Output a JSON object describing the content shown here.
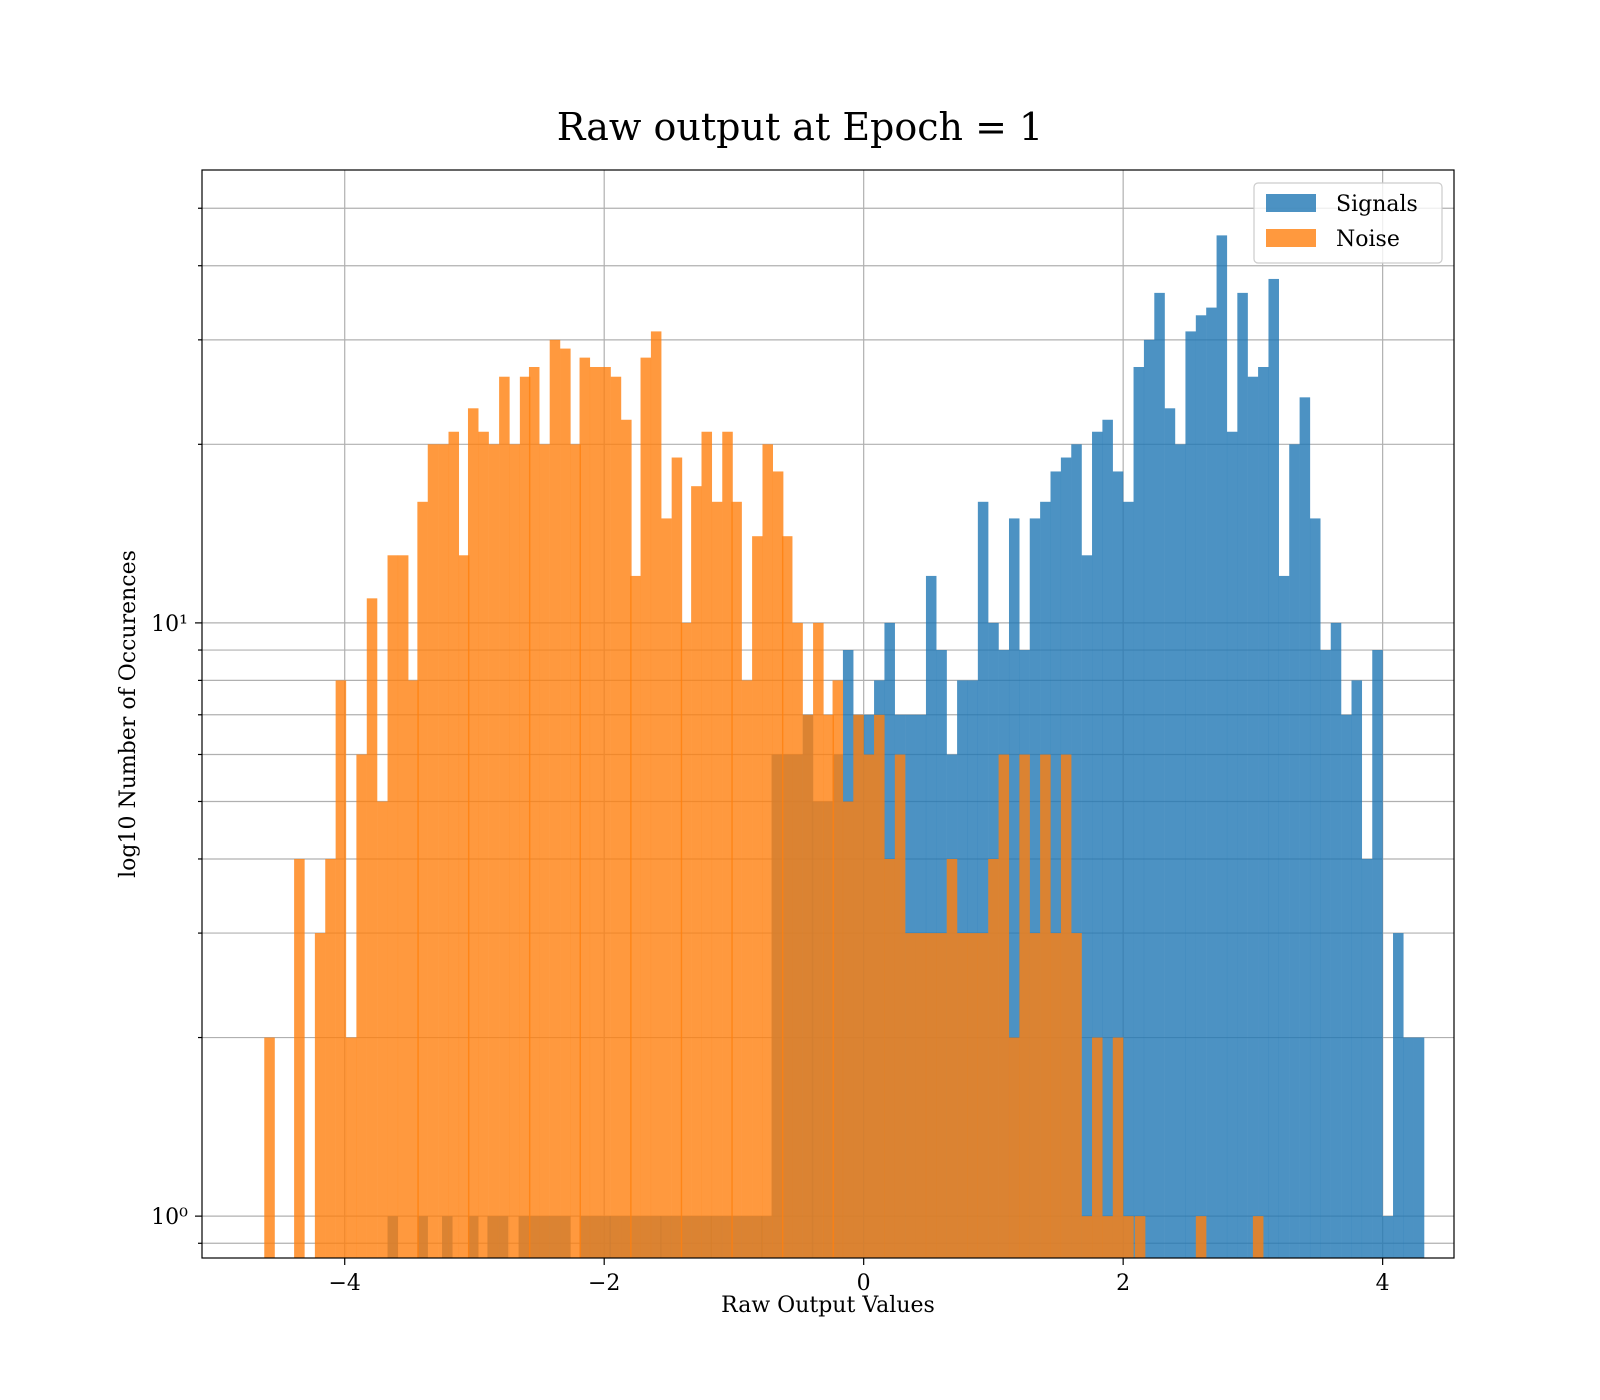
{
  "chart_data": {
    "type": "bar",
    "title": "Raw output at Epoch = 1",
    "xlabel": "Raw Output Values",
    "ylabel": "log10 Number of Occurences",
    "xlim": [
      -5.1,
      4.55
    ],
    "ylim": [
      0.85,
      58
    ],
    "yscale": "log",
    "grid": true,
    "legend_position": "top-right",
    "x_ticks": [
      -4,
      -2,
      0,
      2,
      4
    ],
    "x_tick_labels": [
      "−4",
      "−2",
      "0",
      "2",
      "4"
    ],
    "y_tick_labels": [
      "10⁰",
      "10¹"
    ],
    "bin_width": 0.078,
    "series": [
      {
        "name": "Signals",
        "color": "#1f77b4",
        "bins": [
          [
            -3.67,
            1
          ],
          [
            -3.44,
            1
          ],
          [
            -3.25,
            1
          ],
          [
            -3.05,
            1
          ],
          [
            -2.9,
            1
          ],
          [
            -2.82,
            1
          ],
          [
            -2.66,
            1
          ],
          [
            -2.58,
            1
          ],
          [
            -2.5,
            1
          ],
          [
            -2.42,
            1
          ],
          [
            -2.34,
            1
          ],
          [
            -2.19,
            1
          ],
          [
            -2.11,
            1
          ],
          [
            -2.03,
            1
          ],
          [
            -1.96,
            1
          ],
          [
            -1.88,
            1
          ],
          [
            -1.8,
            1
          ],
          [
            -1.72,
            1
          ],
          [
            -1.64,
            1
          ],
          [
            -1.57,
            1
          ],
          [
            -1.49,
            1
          ],
          [
            -1.41,
            1
          ],
          [
            -1.33,
            1
          ],
          [
            -1.25,
            1
          ],
          [
            -1.18,
            1
          ],
          [
            -1.1,
            1
          ],
          [
            -1.02,
            1
          ],
          [
            -0.94,
            1
          ],
          [
            -0.86,
            1
          ],
          [
            -0.79,
            1
          ],
          [
            -0.71,
            6
          ],
          [
            -0.63,
            6
          ],
          [
            -0.55,
            6
          ],
          [
            -0.47,
            7
          ],
          [
            -0.4,
            5
          ],
          [
            -0.32,
            5
          ],
          [
            -0.24,
            6
          ],
          [
            -0.16,
            9
          ],
          [
            -0.08,
            7
          ],
          [
            0.0,
            7
          ],
          [
            0.08,
            8
          ],
          [
            0.16,
            10
          ],
          [
            0.24,
            7
          ],
          [
            0.32,
            7
          ],
          [
            0.4,
            7
          ],
          [
            0.48,
            12
          ],
          [
            0.56,
            9
          ],
          [
            0.64,
            6
          ],
          [
            0.72,
            8
          ],
          [
            0.8,
            8
          ],
          [
            0.88,
            16
          ],
          [
            0.96,
            10
          ],
          [
            1.04,
            9
          ],
          [
            1.12,
            15
          ],
          [
            1.2,
            9
          ],
          [
            1.28,
            15
          ],
          [
            1.36,
            16
          ],
          [
            1.44,
            18
          ],
          [
            1.52,
            19
          ],
          [
            1.6,
            20
          ],
          [
            1.68,
            13
          ],
          [
            1.76,
            21
          ],
          [
            1.84,
            22
          ],
          [
            1.92,
            18
          ],
          [
            2.0,
            16
          ],
          [
            2.08,
            27
          ],
          [
            2.16,
            30
          ],
          [
            2.24,
            36
          ],
          [
            2.32,
            23
          ],
          [
            2.4,
            20
          ],
          [
            2.48,
            31
          ],
          [
            2.56,
            33
          ],
          [
            2.64,
            34
          ],
          [
            2.72,
            45
          ],
          [
            2.8,
            21
          ],
          [
            2.88,
            36
          ],
          [
            2.96,
            26
          ],
          [
            3.04,
            27
          ],
          [
            3.12,
            38
          ],
          [
            3.2,
            12
          ],
          [
            3.28,
            20
          ],
          [
            3.36,
            24
          ],
          [
            3.44,
            15
          ],
          [
            3.52,
            9
          ],
          [
            3.6,
            10
          ],
          [
            3.68,
            7
          ],
          [
            3.76,
            8
          ],
          [
            3.84,
            4
          ],
          [
            3.92,
            9
          ],
          [
            4.0,
            1
          ],
          [
            4.08,
            3
          ],
          [
            4.16,
            2
          ],
          [
            4.24,
            2
          ]
        ]
      },
      {
        "name": "Noise",
        "color": "#ff7f0e",
        "bins": [
          [
            -4.62,
            2
          ],
          [
            -4.39,
            4
          ],
          [
            -4.23,
            3
          ],
          [
            -4.15,
            4
          ],
          [
            -4.07,
            8
          ],
          [
            -3.99,
            2
          ],
          [
            -3.91,
            6
          ],
          [
            -3.83,
            11
          ],
          [
            -3.75,
            5
          ],
          [
            -3.67,
            13
          ],
          [
            -3.59,
            13
          ],
          [
            -3.51,
            8
          ],
          [
            -3.44,
            16
          ],
          [
            -3.36,
            20
          ],
          [
            -3.28,
            20
          ],
          [
            -3.2,
            21
          ],
          [
            -3.12,
            13
          ],
          [
            -3.05,
            23
          ],
          [
            -2.97,
            21
          ],
          [
            -2.89,
            20
          ],
          [
            -2.81,
            26
          ],
          [
            -2.73,
            20
          ],
          [
            -2.65,
            26
          ],
          [
            -2.58,
            27
          ],
          [
            -2.5,
            20
          ],
          [
            -2.42,
            30
          ],
          [
            -2.34,
            29
          ],
          [
            -2.26,
            20
          ],
          [
            -2.19,
            28
          ],
          [
            -2.11,
            27
          ],
          [
            -2.03,
            27
          ],
          [
            -1.95,
            26
          ],
          [
            -1.87,
            22
          ],
          [
            -1.8,
            12
          ],
          [
            -1.72,
            28
          ],
          [
            -1.64,
            31
          ],
          [
            -1.56,
            15
          ],
          [
            -1.48,
            19
          ],
          [
            -1.41,
            10
          ],
          [
            -1.33,
            17
          ],
          [
            -1.25,
            21
          ],
          [
            -1.17,
            16
          ],
          [
            -1.09,
            21
          ],
          [
            -1.02,
            16
          ],
          [
            -0.94,
            8
          ],
          [
            -0.86,
            14
          ],
          [
            -0.78,
            20
          ],
          [
            -0.7,
            18
          ],
          [
            -0.63,
            14
          ],
          [
            -0.55,
            10
          ],
          [
            -0.47,
            7
          ],
          [
            -0.39,
            10
          ],
          [
            -0.31,
            7
          ],
          [
            -0.24,
            8
          ],
          [
            -0.16,
            5
          ],
          [
            -0.08,
            7
          ],
          [
            0.0,
            6
          ],
          [
            0.08,
            7
          ],
          [
            0.16,
            4
          ],
          [
            0.24,
            6
          ],
          [
            0.32,
            3
          ],
          [
            0.4,
            3
          ],
          [
            0.48,
            3
          ],
          [
            0.56,
            3
          ],
          [
            0.64,
            4
          ],
          [
            0.72,
            3
          ],
          [
            0.8,
            3
          ],
          [
            0.88,
            3
          ],
          [
            0.96,
            4
          ],
          [
            1.04,
            6
          ],
          [
            1.12,
            2
          ],
          [
            1.2,
            6
          ],
          [
            1.28,
            3
          ],
          [
            1.36,
            6
          ],
          [
            1.44,
            3
          ],
          [
            1.52,
            6
          ],
          [
            1.6,
            3
          ],
          [
            1.68,
            1
          ],
          [
            1.76,
            2
          ],
          [
            1.84,
            1
          ],
          [
            1.92,
            2
          ],
          [
            2.0,
            1
          ],
          [
            2.09,
            1
          ],
          [
            2.56,
            1
          ],
          [
            3.0,
            1
          ]
        ]
      }
    ]
  }
}
